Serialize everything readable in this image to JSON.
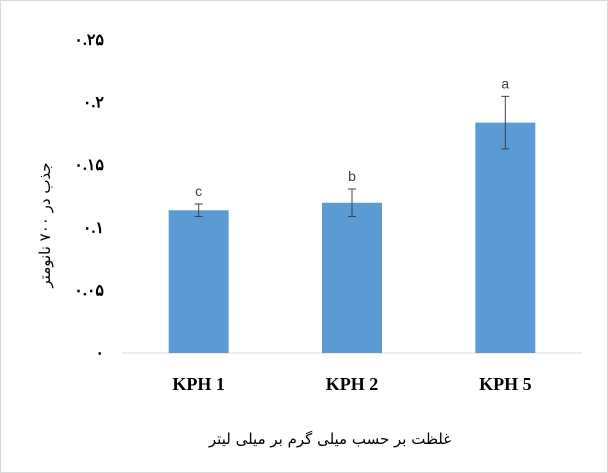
{
  "chart_data": {
    "type": "bar",
    "title": "",
    "categories": [
      "KPH 1",
      "KPH 2",
      "KPH 5"
    ],
    "series": [
      {
        "values": [
          0.114,
          0.12,
          0.184
        ],
        "errors": [
          0.005,
          0.011,
          0.021
        ],
        "labels": [
          "c",
          "b",
          "a"
        ]
      }
    ],
    "ylim": [
      0,
      0.25
    ],
    "yticks": [
      0,
      0.05,
      0.1,
      0.15,
      0.2,
      0.25
    ],
    "ytick_labels": [
      "۰",
      "۰.۰۵",
      "۰.۱",
      "۰.۱۵",
      "۰.۲",
      "۰.۲۵"
    ],
    "ylabel": "جذب در ۷۰۰ نانومتر",
    "xlabel": "غلظت بر حسب میلی گرم بر میلی لیتر",
    "bar_color": "#5b9bd5",
    "grid": false,
    "legend": "none"
  }
}
